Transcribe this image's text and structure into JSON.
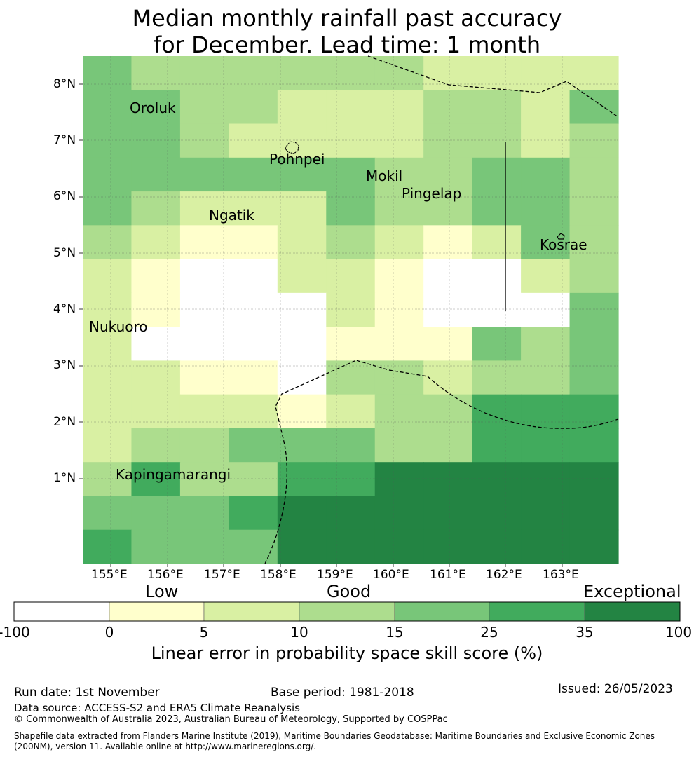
{
  "title_line1": "Median monthly rainfall past accuracy",
  "title_line2": "for December. Lead time: 1 month",
  "chart_data": {
    "type": "heatmap",
    "lon_ticks": [
      "155°E",
      "156°E",
      "157°E",
      "158°E",
      "159°E",
      "160°E",
      "161°E",
      "162°E",
      "163°E"
    ],
    "lat_ticks": [
      "8°N",
      "7°N",
      "6°N",
      "5°N",
      "4°N",
      "3°N",
      "2°N",
      "1°N"
    ],
    "islands": [
      "Oroluk",
      "Pohnpei",
      "Mokil",
      "Pingelap",
      "Ngatik",
      "Kosrae",
      "Nukuoro",
      "Kapingamarangi"
    ],
    "grid_category_rows": [
      "43333332222",
      "44332223324",
      "44322223323",
      "44444433443",
      "43222433443",
      "32112321243",
      "21002210023",
      "21000210004",
      "20000111434",
      "22110332334",
      "22221233555",
      "23344433555",
      "35335566666",
      "44456666666",
      "54446666666"
    ],
    "legend": {
      "categories": [
        "Low",
        "Good",
        "Exceptional"
      ],
      "ticks": [
        "-100",
        "0",
        "5",
        "10",
        "15",
        "25",
        "35",
        "100"
      ],
      "colors": [
        "#ffffff",
        "#ffffcc",
        "#d9f0a3",
        "#addd8e",
        "#78c679",
        "#41ab5d",
        "#238443"
      ],
      "label": "Linear error in probability space skill score (%)"
    }
  },
  "footer": {
    "run_date": "Run date: 1st November",
    "base_period": "Base period: 1981-2018",
    "issued": "Issued: 26/05/2023",
    "data_source": "Data source: ACCESS-S2 and ERA5 Climate Reanalysis",
    "copyright": "© Commonwealth of Australia 2023, Australian Bureau of Meteorology, Supported by COSPPac",
    "shapefile": "Shapefile data extracted from Flanders Marine Institute (2019), Maritime Boundaries Geodatabase: Maritime Boundaries and Exclusive Economic Zones (200NM), version 11. Available online at http://www.marineregions.org/."
  }
}
